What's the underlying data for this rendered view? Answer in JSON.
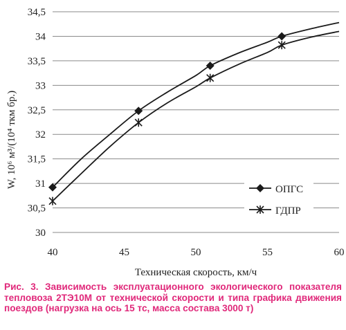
{
  "caption": "Рис. 3. Зависимость эксплуатационного экологического показателя тепловоза 2ТЭ10М от технической скорости и типа графика движения поездов (нагрузка на ось 15 тс, масса состава 3000 т)",
  "chart_data": {
    "type": "line",
    "xlabel": "Техническая скорость, км/ч",
    "ylabel": "W, 10⁶ м³/(10⁴ ткм бр.)",
    "xlim": [
      40,
      60
    ],
    "ylim": [
      30,
      34.5
    ],
    "x_ticks": [
      "40",
      "45",
      "50",
      "55",
      "60"
    ],
    "y_ticks": [
      "30",
      "30,5",
      "31",
      "31,5",
      "32",
      "32,5",
      "33",
      "33,5",
      "34",
      "34,5"
    ],
    "grid": "horizontal",
    "legend_position": "right",
    "series": [
      {
        "name": "ОПГС",
        "marker": "diamond",
        "points": [
          [
            40,
            30.92
          ],
          [
            46,
            32.48
          ],
          [
            51,
            33.4
          ],
          [
            56,
            34.0
          ]
        ],
        "curve": [
          [
            40,
            30.92
          ],
          [
            42,
            31.5
          ],
          [
            44,
            32.0
          ],
          [
            46,
            32.48
          ],
          [
            48,
            32.86
          ],
          [
            50,
            33.2
          ],
          [
            51,
            33.4
          ],
          [
            53,
            33.66
          ],
          [
            55,
            33.88
          ],
          [
            56,
            34.0
          ],
          [
            58,
            34.15
          ],
          [
            60,
            34.28
          ]
        ]
      },
      {
        "name": "ГДПР",
        "marker": "asterisk",
        "points": [
          [
            40,
            30.64
          ],
          [
            46,
            32.24
          ],
          [
            51,
            33.15
          ],
          [
            56,
            33.82
          ]
        ],
        "curve": [
          [
            40,
            30.64
          ],
          [
            42,
            31.2
          ],
          [
            44,
            31.75
          ],
          [
            46,
            32.24
          ],
          [
            48,
            32.64
          ],
          [
            50,
            32.97
          ],
          [
            51,
            33.15
          ],
          [
            53,
            33.43
          ],
          [
            55,
            33.67
          ],
          [
            56,
            33.82
          ],
          [
            58,
            33.98
          ],
          [
            60,
            34.1
          ]
        ]
      }
    ]
  }
}
